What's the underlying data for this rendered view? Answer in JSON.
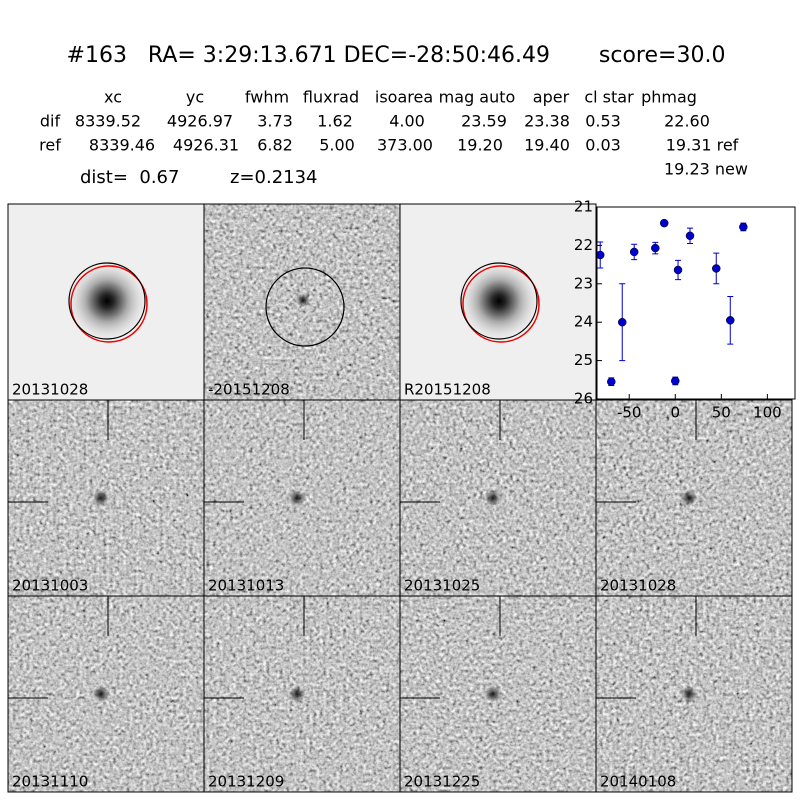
{
  "header": {
    "title": "#163   RA= 3:29:13.671 DEC=-28:50:46.49       score=30.0",
    "columns": [
      "xc",
      "yc",
      "fwhm",
      "fluxrad",
      "isoarea",
      "mag auto",
      "aper",
      "cl star",
      "phmag"
    ],
    "rows": [
      [
        "dif",
        "8339.52",
        "4926.97",
        "3.73",
        "1.62",
        "4.00",
        "23.59",
        "23.38",
        "0.53",
        "22.60"
      ],
      [
        "ref",
        "8339.46",
        "4926.31",
        "6.82",
        "5.00",
        "373.00",
        "19.20",
        "19.40",
        "0.03",
        "19.31 ref"
      ]
    ],
    "extra": "19.23 new",
    "dist": "dist=  0.67",
    "z": "z=0.2134"
  },
  "panels": [
    "20131028",
    "-20151208",
    "R20151208",
    "20131003",
    "20131013",
    "20131025",
    "20131028",
    "20131110",
    "20131209",
    "20131225",
    "20140108"
  ],
  "chart_data": {
    "type": "scatter",
    "color": "#0000cc",
    "x": [
      -81.5,
      -69.5,
      -57.6,
      -44.6,
      -21.7,
      -12,
      3,
      0,
      16,
      44.5,
      59.7,
      73.9
    ],
    "values": [
      22.25,
      25.55,
      24.0,
      22.17,
      22.07,
      21.42,
      22.64,
      25.53,
      21.75,
      22.6,
      23.95,
      21.52
    ],
    "errors": [
      0.34,
      0.1,
      1.0,
      0.2,
      0.15,
      0.07,
      0.25,
      0.1,
      0.2,
      0.4,
      0.62,
      0.1
    ],
    "xlim": [
      -85,
      130
    ],
    "ylim": [
      26,
      21
    ],
    "xticks": [
      -50,
      0,
      50,
      100
    ],
    "yticks": [
      21,
      22,
      23,
      24,
      25,
      26
    ]
  }
}
